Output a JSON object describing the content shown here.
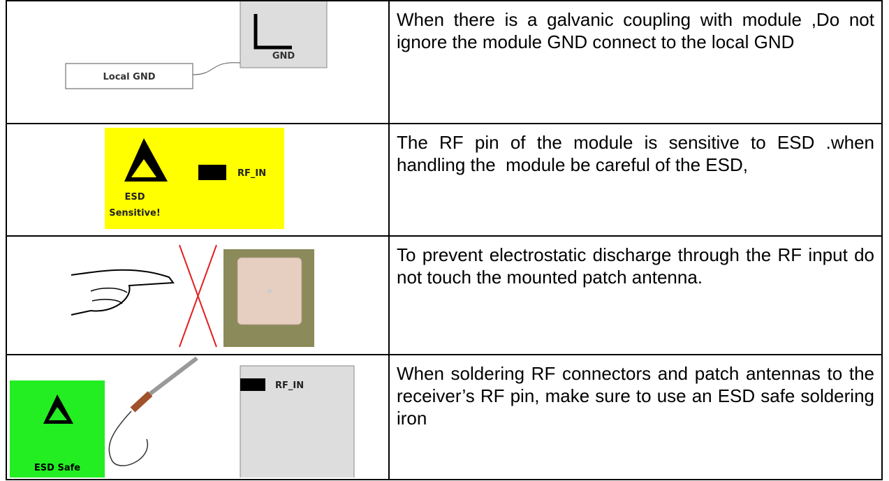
{
  "table": {
    "rows": [
      {
        "labels": [
          "GND",
          "Local GND"
        ],
        "text": "When there is a galvanic coupling with module ,Do not ignore the module GND connect to the local GND"
      },
      {
        "labels": [
          "ESD",
          "Sensitive!",
          "RF_IN"
        ],
        "text": "The RF pin of the module is sensitive to ESD .when handling the  module be careful of the ESD,"
      },
      {
        "text": "To prevent electrostatic discharge through the RF input do not touch the mounted patch antenna."
      },
      {
        "labels": [
          "RF_IN",
          "ESD Safe"
        ],
        "text": "When soldering RF connectors and patch antennas to the receiver’s RF pin, make sure to use an ESD safe soldering iron"
      }
    ]
  }
}
